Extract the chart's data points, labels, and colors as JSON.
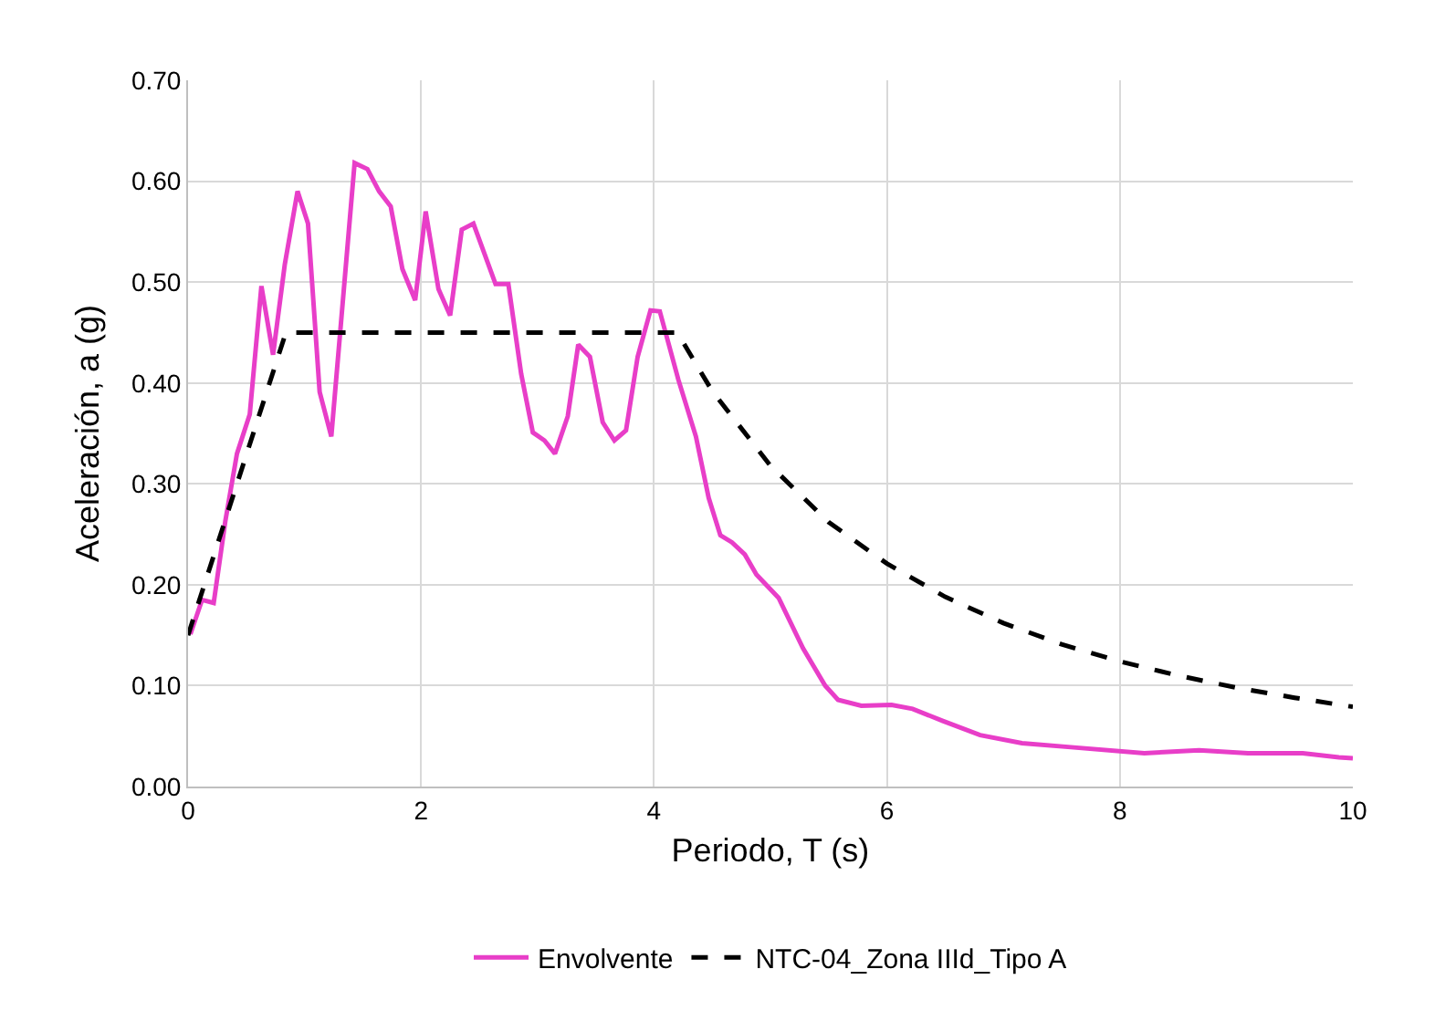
{
  "chart_data": {
    "type": "line",
    "xlabel": "Periodo, T (s)",
    "ylabel": "Aceleración, a (g)",
    "xlim": [
      0,
      10
    ],
    "xticks": [
      0,
      2,
      4,
      6,
      8,
      10
    ],
    "ylim": [
      0,
      0.7
    ],
    "yticks": [
      {
        "value": 0,
        "label": "0.00"
      },
      {
        "value": 0.1,
        "label": "0.10"
      },
      {
        "value": 0.2,
        "label": "0.20"
      },
      {
        "value": 0.3,
        "label": "0.30"
      },
      {
        "value": 0.4,
        "label": "0.40"
      },
      {
        "value": 0.5,
        "label": "0.50"
      },
      {
        "value": 0.6,
        "label": "0.60"
      },
      {
        "value": 0.7,
        "label": "0.70"
      }
    ],
    "grid": true,
    "legend": "bottom",
    "marker": "none",
    "series": [
      {
        "name": "Envolvente",
        "color": "#e83ec8",
        "line_style": "solid",
        "x": [
          0.02,
          0.12,
          0.22,
          0.32,
          0.42,
          0.53,
          0.63,
          0.73,
          0.83,
          0.94,
          1.03,
          1.13,
          1.23,
          1.43,
          1.54,
          1.64,
          1.74,
          1.84,
          1.95,
          2.04,
          2.15,
          2.25,
          2.35,
          2.45,
          2.64,
          2.75,
          2.86,
          2.96,
          3.06,
          3.15,
          3.26,
          3.35,
          3.45,
          3.56,
          3.66,
          3.76,
          3.86,
          3.97,
          4.05,
          4.21,
          4.36,
          4.47,
          4.57,
          4.67,
          4.78,
          4.88,
          5.07,
          5.28,
          5.47,
          5.58,
          5.78,
          6.04,
          6.22,
          6.48,
          6.8,
          7.16,
          7.58,
          8.21,
          8.68,
          9.1,
          9.57,
          9.88,
          10
        ],
        "values": [
          0.151,
          0.185,
          0.182,
          0.263,
          0.33,
          0.369,
          0.496,
          0.428,
          0.517,
          0.59,
          0.558,
          0.391,
          0.347,
          0.618,
          0.612,
          0.59,
          0.575,
          0.513,
          0.482,
          0.57,
          0.493,
          0.467,
          0.552,
          0.558,
          0.498,
          0.498,
          0.409,
          0.351,
          0.343,
          0.33,
          0.367,
          0.438,
          0.426,
          0.361,
          0.343,
          0.353,
          0.426,
          0.472,
          0.471,
          0.403,
          0.347,
          0.286,
          0.249,
          0.242,
          0.23,
          0.21,
          0.187,
          0.137,
          0.1,
          0.086,
          0.08,
          0.081,
          0.077,
          0.065,
          0.051,
          0.043,
          0.039,
          0.033,
          0.036,
          0.033,
          0.033,
          0.029,
          0.028
        ]
      },
      {
        "name": "NTC-04_Zona IIId_Tipo A",
        "color": "#000000",
        "line_style": "dashed",
        "x": [
          0,
          0.84,
          4.2,
          4.5,
          5,
          5.5,
          6,
          6.5,
          7,
          7.5,
          8,
          8.5,
          9,
          9.5,
          10
        ],
        "values": [
          0.15,
          0.45,
          0.45,
          0.392,
          0.318,
          0.262,
          0.221,
          0.188,
          0.162,
          0.141,
          0.124,
          0.11,
          0.098,
          0.088,
          0.079
        ]
      }
    ]
  }
}
